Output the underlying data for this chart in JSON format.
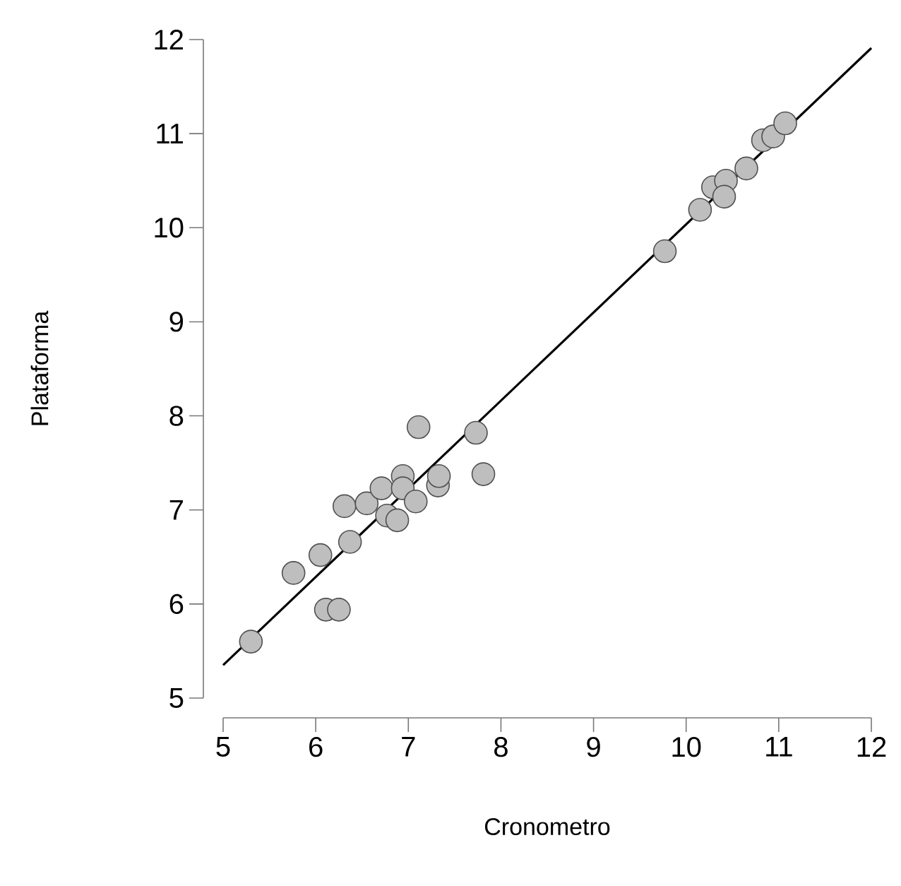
{
  "chart_data": {
    "type": "scatter",
    "xlabel": "Cronometro",
    "ylabel": "Plataforma",
    "xlim": [
      5,
      12
    ],
    "ylim": [
      5,
      12
    ],
    "xticks": [
      5,
      6,
      7,
      8,
      9,
      10,
      11,
      12
    ],
    "yticks": [
      5,
      6,
      7,
      8,
      9,
      10,
      11,
      12
    ],
    "grid": false,
    "legend": false,
    "series": [
      {
        "color": "#bebebe",
        "marker": "circle",
        "x": [
          5.3,
          5.76,
          6.05,
          6.11,
          6.25,
          6.31,
          6.37,
          6.55,
          6.71,
          6.77,
          6.88,
          6.94,
          6.94,
          7.08,
          7.11,
          7.32,
          7.33,
          7.73,
          7.81,
          9.77,
          10.15,
          10.29,
          10.43,
          10.41,
          10.65,
          10.83,
          10.94,
          11.07
        ],
        "values": [
          5.6,
          6.33,
          6.52,
          5.94,
          5.94,
          7.04,
          6.66,
          7.07,
          7.23,
          6.94,
          6.89,
          7.36,
          7.23,
          7.09,
          7.88,
          7.26,
          7.36,
          7.82,
          7.38,
          9.75,
          10.19,
          10.43,
          10.5,
          10.33,
          10.63,
          10.93,
          10.97,
          11.11
        ]
      },
      {
        "type": "line",
        "color": "#000000",
        "marker": "none",
        "line_style": "solid",
        "x": [
          5,
          12
        ],
        "values": [
          5.35,
          11.91
        ]
      }
    ]
  }
}
